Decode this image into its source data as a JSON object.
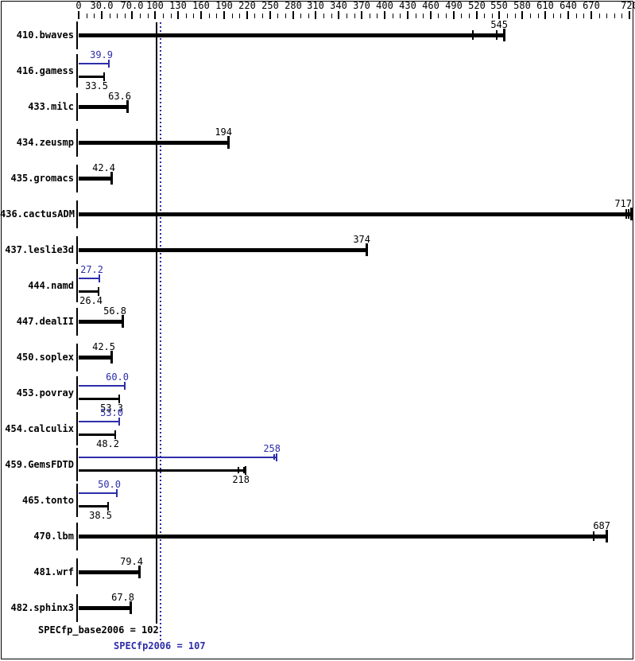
{
  "chart_data": {
    "type": "bar",
    "orientation": "horizontal",
    "title": "",
    "xlabel": "",
    "ylabel": "",
    "xlim": [
      0,
      720
    ],
    "x_tick_interval": 10,
    "grid": false,
    "axis_labels": [
      {
        "value": 0,
        "text": "0"
      },
      {
        "value": 30,
        "text": "30.0"
      },
      {
        "value": 70,
        "text": "70.0"
      },
      {
        "value": 100,
        "text": "100"
      },
      {
        "value": 130,
        "text": "130"
      },
      {
        "value": 160,
        "text": "160"
      },
      {
        "value": 190,
        "text": "190"
      },
      {
        "value": 220,
        "text": "220"
      },
      {
        "value": 250,
        "text": "250"
      },
      {
        "value": 280,
        "text": "280"
      },
      {
        "value": 310,
        "text": "310"
      },
      {
        "value": 340,
        "text": "340"
      },
      {
        "value": 370,
        "text": "370"
      },
      {
        "value": 400,
        "text": "400"
      },
      {
        "value": 430,
        "text": "430"
      },
      {
        "value": 460,
        "text": "460"
      },
      {
        "value": 490,
        "text": "490"
      },
      {
        "value": 520,
        "text": "520"
      },
      {
        "value": 550,
        "text": "550"
      },
      {
        "value": 580,
        "text": "580"
      },
      {
        "value": 610,
        "text": "610"
      },
      {
        "value": 640,
        "text": "640"
      },
      {
        "value": 670,
        "text": "670"
      },
      {
        "value": 720,
        "text": "720"
      }
    ],
    "series": [
      {
        "name": "base",
        "color": "#000000"
      },
      {
        "name": "peak",
        "color": "#2d2daa"
      }
    ],
    "reference_lines": [
      {
        "name": "base-score-line",
        "value": 102,
        "style": "solid",
        "color": "#000000"
      },
      {
        "name": "peak-score-line",
        "value": 107,
        "style": "dotted",
        "color": "#2d2daa"
      }
    ],
    "benchmarks": [
      {
        "name": "410.bwaves",
        "peak": null,
        "base": {
          "label": "545",
          "value": 545,
          "end": 556,
          "run_ticks": [
            515,
            546
          ]
        }
      },
      {
        "name": "416.gamess",
        "peak": {
          "label": "39.9",
          "value": 39.9,
          "end": 39.9,
          "run_ticks": []
        },
        "base": {
          "label": "33.5",
          "value": 33.5,
          "end": 33.5,
          "run_ticks": []
        }
      },
      {
        "name": "433.milc",
        "peak": null,
        "base": {
          "label": "63.6",
          "value": 63.6,
          "end": 63.6,
          "run_ticks": []
        }
      },
      {
        "name": "434.zeusmp",
        "peak": null,
        "base": {
          "label": "194",
          "value": 194,
          "end": 195,
          "run_ticks": []
        }
      },
      {
        "name": "435.gromacs",
        "peak": null,
        "base": {
          "label": "42.4",
          "value": 42.4,
          "end": 42.4,
          "run_ticks": []
        }
      },
      {
        "name": "436.cactusADM",
        "peak": null,
        "base": {
          "label": "717",
          "value": 717,
          "end": 722,
          "run_ticks": [
            716,
            719
          ]
        }
      },
      {
        "name": "437.leslie3d",
        "peak": null,
        "base": {
          "label": "374",
          "value": 374,
          "end": 376,
          "run_ticks": []
        }
      },
      {
        "name": "444.namd",
        "peak": {
          "label": "27.2",
          "value": 27.2,
          "end": 27.2,
          "run_ticks": []
        },
        "base": {
          "label": "26.4",
          "value": 26.4,
          "end": 26.4,
          "run_ticks": []
        }
      },
      {
        "name": "447.dealII",
        "peak": null,
        "base": {
          "label": "56.8",
          "value": 56.8,
          "end": 57,
          "run_ticks": []
        }
      },
      {
        "name": "450.soplex",
        "peak": null,
        "base": {
          "label": "42.5",
          "value": 42.5,
          "end": 42.5,
          "run_ticks": []
        }
      },
      {
        "name": "453.povray",
        "peak": {
          "label": "60.0",
          "value": 60.0,
          "end": 60,
          "run_ticks": []
        },
        "base": {
          "label": "53.3",
          "value": 53.3,
          "end": 53.3,
          "run_ticks": []
        }
      },
      {
        "name": "454.calculix",
        "peak": {
          "label": "53.0",
          "value": 53.0,
          "end": 53,
          "run_ticks": []
        },
        "base": {
          "label": "48.2",
          "value": 48.2,
          "end": 48.2,
          "run_ticks": []
        }
      },
      {
        "name": "459.GemsFDTD",
        "peak": {
          "label": "258",
          "value": 258,
          "end": 259,
          "run_ticks": [
            256
          ]
        },
        "base": {
          "label": "218",
          "value": 218,
          "end": 218,
          "run_ticks": [
            209,
            216
          ]
        }
      },
      {
        "name": "465.tonto",
        "peak": {
          "label": "50.0",
          "value": 50.0,
          "end": 50,
          "run_ticks": []
        },
        "base": {
          "label": "38.5",
          "value": 38.5,
          "end": 38.5,
          "run_ticks": []
        }
      },
      {
        "name": "470.lbm",
        "peak": null,
        "base": {
          "label": "687",
          "value": 687,
          "end": 690,
          "run_ticks": [
            673
          ]
        }
      },
      {
        "name": "481.wrf",
        "peak": null,
        "base": {
          "label": "79.4",
          "value": 79.4,
          "end": 79.4,
          "run_ticks": []
        }
      },
      {
        "name": "482.sphinx3",
        "peak": null,
        "base": {
          "label": "67.8",
          "value": 67.8,
          "end": 67.8,
          "run_ticks": []
        }
      }
    ],
    "summary": {
      "base": 102,
      "peak": 107
    }
  },
  "footer": {
    "base_score_text": "SPECfp_base2006 = 102",
    "peak_score_text": "SPECfp2006 = 107"
  },
  "colors": {
    "base": "#000000",
    "peak": "#2d2daa",
    "background": "#ffffff",
    "border": "#000000"
  }
}
